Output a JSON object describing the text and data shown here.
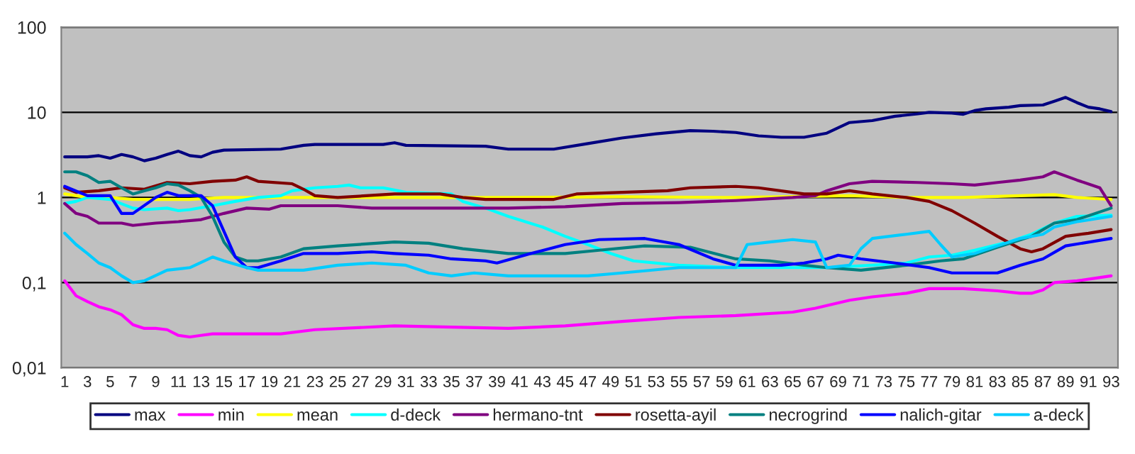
{
  "chart_data": {
    "type": "line",
    "log": "y",
    "grid": "y",
    "legend": "bottom",
    "line_style": "solid",
    "marker": "none",
    "xlim": [
      0.7,
      93.6
    ],
    "xticks": [
      1,
      3,
      5,
      7,
      9,
      11,
      13,
      15,
      17,
      19,
      21,
      23,
      25,
      27,
      29,
      31,
      33,
      35,
      37,
      39,
      41,
      43,
      45,
      47,
      49,
      51,
      53,
      55,
      57,
      59,
      61,
      63,
      65,
      67,
      69,
      71,
      73,
      75,
      77,
      79,
      81,
      83,
      85,
      87,
      89,
      91,
      93
    ],
    "ylim": [
      0.01,
      100
    ],
    "yticks": [
      {
        "value": 0.01,
        "label": "0,01"
      },
      {
        "value": 0.1,
        "label": "0,1"
      },
      {
        "value": 1,
        "label": "1"
      },
      {
        "value": 10,
        "label": "10"
      },
      {
        "value": 100,
        "label": "100"
      }
    ],
    "series": [
      {
        "name": "max",
        "color": "#000080",
        "x": [
          1,
          3,
          4,
          5,
          6,
          7,
          8,
          9,
          10,
          11,
          12,
          13,
          14,
          15,
          20,
          22,
          23,
          29,
          30,
          31,
          38,
          40,
          44,
          47,
          50,
          53,
          56,
          58,
          60,
          62,
          64,
          66,
          68,
          70,
          72,
          74,
          76,
          77,
          79,
          80,
          81,
          82,
          84,
          85,
          87,
          88,
          89,
          90,
          91,
          92,
          93
        ],
        "values": [
          3.0,
          3.0,
          3.1,
          2.9,
          3.2,
          3.0,
          2.7,
          2.9,
          3.2,
          3.5,
          3.1,
          3.0,
          3.4,
          3.6,
          3.7,
          4.1,
          4.2,
          4.2,
          4.4,
          4.1,
          4.0,
          3.7,
          3.7,
          4.3,
          5.0,
          5.6,
          6.1,
          6.0,
          5.8,
          5.3,
          5.1,
          5.1,
          5.7,
          7.6,
          8.0,
          9.0,
          9.6,
          10,
          9.8,
          9.5,
          10.5,
          11,
          11.5,
          12,
          12.2,
          13.5,
          15,
          13,
          11.5,
          11,
          10.2
        ]
      },
      {
        "name": "min",
        "color": "#ff00ff",
        "x": [
          1,
          2,
          3,
          4,
          5,
          6,
          7,
          8,
          9,
          10,
          11,
          12,
          13,
          14,
          20,
          23,
          30,
          40,
          45,
          50,
          55,
          60,
          65,
          67,
          70,
          72,
          75,
          77,
          80,
          83,
          85,
          86,
          87,
          88,
          90,
          93
        ],
        "values": [
          0.105,
          0.07,
          0.06,
          0.052,
          0.048,
          0.042,
          0.032,
          0.029,
          0.029,
          0.028,
          0.024,
          0.023,
          0.024,
          0.025,
          0.025,
          0.028,
          0.031,
          0.029,
          0.031,
          0.035,
          0.039,
          0.041,
          0.045,
          0.05,
          0.062,
          0.068,
          0.075,
          0.085,
          0.085,
          0.08,
          0.075,
          0.075,
          0.082,
          0.1,
          0.105,
          0.12
        ]
      },
      {
        "name": "mean",
        "color": "#ffff00",
        "x": [
          1,
          3,
          5,
          7,
          12,
          15,
          20,
          30,
          40,
          50,
          60,
          70,
          75,
          80,
          85,
          88,
          90,
          93
        ],
        "values": [
          1.1,
          1.0,
          1.0,
          0.95,
          0.95,
          1.0,
          1.0,
          1.0,
          1.0,
          1.02,
          1.0,
          1.05,
          1.0,
          1.0,
          1.05,
          1.08,
          1.0,
          0.95
        ]
      },
      {
        "name": "d-deck",
        "color": "#00ffff",
        "x": [
          1,
          2,
          3,
          5,
          7,
          8,
          10,
          11,
          12,
          14,
          16,
          18,
          20,
          21,
          23,
          25,
          26,
          27,
          29,
          31,
          35,
          36,
          38,
          40,
          43,
          45,
          47,
          49,
          51,
          55,
          60,
          65,
          68,
          72,
          75,
          77,
          79,
          81,
          84,
          86,
          88,
          90,
          93
        ],
        "values": [
          0.85,
          0.9,
          1.0,
          0.95,
          0.75,
          0.72,
          0.75,
          0.7,
          0.72,
          0.8,
          0.9,
          1.0,
          1.05,
          1.2,
          1.3,
          1.35,
          1.4,
          1.3,
          1.3,
          1.15,
          1.1,
          0.9,
          0.75,
          0.6,
          0.45,
          0.35,
          0.28,
          0.22,
          0.18,
          0.16,
          0.15,
          0.15,
          0.15,
          0.16,
          0.17,
          0.2,
          0.21,
          0.24,
          0.3,
          0.37,
          0.5,
          0.6,
          0.62
        ]
      },
      {
        "name": "hermano-tnt",
        "color": "#800080",
        "x": [
          1,
          2,
          3,
          4,
          6,
          7,
          9,
          11,
          13,
          15,
          17,
          19,
          20,
          25,
          28,
          33,
          40,
          45,
          50,
          55,
          60,
          65,
          67,
          68,
          70,
          72,
          76,
          79,
          81,
          83,
          85,
          87,
          88,
          90,
          92,
          93
        ],
        "values": [
          0.85,
          0.65,
          0.6,
          0.5,
          0.5,
          0.47,
          0.5,
          0.52,
          0.55,
          0.65,
          0.75,
          0.73,
          0.8,
          0.8,
          0.75,
          0.75,
          0.75,
          0.78,
          0.85,
          0.87,
          0.92,
          1.0,
          1.05,
          1.2,
          1.45,
          1.55,
          1.5,
          1.45,
          1.4,
          1.5,
          1.6,
          1.75,
          2.0,
          1.6,
          1.3,
          0.8
        ]
      },
      {
        "name": "rosetta-ayil",
        "color": "#800000",
        "x": [
          1,
          2,
          4,
          6,
          8,
          10,
          12,
          14,
          16,
          17,
          18,
          21,
          22,
          23,
          25,
          30,
          34,
          36,
          38,
          44,
          46,
          50,
          54,
          56,
          60,
          62,
          66,
          68,
          70,
          72,
          75,
          77,
          79,
          81,
          83,
          85,
          86,
          87,
          89,
          91,
          93
        ],
        "values": [
          1.3,
          1.15,
          1.2,
          1.3,
          1.25,
          1.5,
          1.45,
          1.55,
          1.6,
          1.75,
          1.55,
          1.45,
          1.25,
          1.05,
          1.0,
          1.1,
          1.1,
          1.0,
          0.95,
          0.95,
          1.1,
          1.15,
          1.2,
          1.3,
          1.35,
          1.3,
          1.1,
          1.1,
          1.2,
          1.1,
          1.0,
          0.9,
          0.7,
          0.5,
          0.35,
          0.25,
          0.23,
          0.25,
          0.35,
          0.38,
          0.42
        ]
      },
      {
        "name": "necrogrind",
        "color": "#008080",
        "x": [
          1,
          2,
          3,
          4,
          5,
          6,
          7,
          8,
          9,
          10,
          11,
          12,
          13,
          14,
          15,
          16,
          17,
          18,
          20,
          22,
          25,
          30,
          33,
          36,
          40,
          45,
          48,
          52,
          56,
          60,
          63,
          66,
          68,
          71,
          75,
          78,
          80,
          83,
          86,
          88,
          90,
          93
        ],
        "values": [
          2.0,
          2.0,
          1.8,
          1.5,
          1.55,
          1.3,
          1.1,
          1.2,
          1.3,
          1.45,
          1.4,
          1.2,
          1.0,
          0.6,
          0.3,
          0.2,
          0.18,
          0.18,
          0.2,
          0.25,
          0.27,
          0.3,
          0.29,
          0.25,
          0.22,
          0.22,
          0.24,
          0.27,
          0.26,
          0.19,
          0.18,
          0.16,
          0.15,
          0.14,
          0.16,
          0.18,
          0.19,
          0.26,
          0.35,
          0.5,
          0.55,
          0.75
        ]
      },
      {
        "name": "nalich-gitar",
        "color": "#0000ff",
        "x": [
          1,
          3,
          5,
          6,
          7,
          9,
          10,
          11,
          13,
          14,
          15,
          16,
          17,
          18,
          20,
          22,
          25,
          28,
          30,
          33,
          35,
          38,
          39,
          42,
          45,
          48,
          52,
          55,
          58,
          60,
          62,
          64,
          66,
          68,
          69,
          71,
          74,
          77,
          79,
          83,
          85,
          87,
          89,
          93
        ],
        "values": [
          1.35,
          1.05,
          1.05,
          0.65,
          0.65,
          1.0,
          1.15,
          1.05,
          1.05,
          0.8,
          0.4,
          0.2,
          0.15,
          0.15,
          0.18,
          0.22,
          0.22,
          0.23,
          0.22,
          0.21,
          0.19,
          0.18,
          0.17,
          0.22,
          0.28,
          0.32,
          0.33,
          0.28,
          0.19,
          0.16,
          0.16,
          0.16,
          0.17,
          0.19,
          0.21,
          0.19,
          0.17,
          0.15,
          0.13,
          0.13,
          0.16,
          0.19,
          0.27,
          0.33
        ]
      },
      {
        "name": "a-deck",
        "color": "#00ccff",
        "x": [
          1,
          2,
          3,
          4,
          5,
          6,
          7,
          8,
          10,
          12,
          14,
          15,
          17,
          18,
          22,
          25,
          28,
          31,
          33,
          35,
          37,
          40,
          43,
          47,
          50,
          55,
          58,
          60,
          61,
          63,
          65,
          67,
          68,
          70,
          71,
          72,
          75,
          77,
          78,
          79,
          81,
          83,
          85,
          87,
          88,
          90,
          93
        ],
        "values": [
          0.38,
          0.28,
          0.22,
          0.17,
          0.15,
          0.12,
          0.1,
          0.105,
          0.14,
          0.15,
          0.2,
          0.18,
          0.15,
          0.14,
          0.14,
          0.16,
          0.17,
          0.16,
          0.13,
          0.12,
          0.13,
          0.12,
          0.12,
          0.12,
          0.13,
          0.15,
          0.15,
          0.15,
          0.28,
          0.3,
          0.32,
          0.3,
          0.15,
          0.16,
          0.25,
          0.33,
          0.37,
          0.4,
          0.28,
          0.2,
          0.22,
          0.27,
          0.33,
          0.37,
          0.45,
          0.52,
          0.6
        ]
      }
    ]
  }
}
